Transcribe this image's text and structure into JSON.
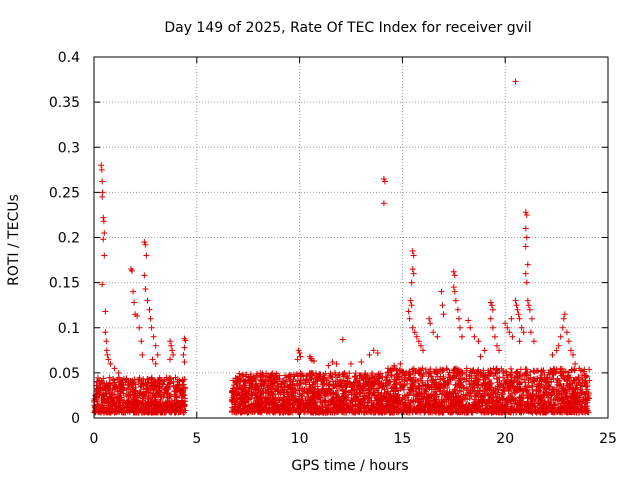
{
  "chart_data": {
    "type": "scatter",
    "title": "Day 149 of 2025, Rate Of TEC Index for receiver gvil",
    "xlabel": "GPS time / hours",
    "ylabel": "ROTI / TECUs",
    "xlim": [
      0,
      25
    ],
    "ylim": [
      0,
      0.4
    ],
    "xticks": [
      0,
      5,
      10,
      15,
      20,
      25
    ],
    "xtick_labels": [
      "0",
      "5",
      "10",
      "15",
      "20",
      "25"
    ],
    "yticks": [
      0,
      0.05,
      0.1,
      0.15,
      0.2,
      0.25,
      0.3,
      0.35,
      0.4
    ],
    "ytick_labels": [
      "0",
      "0.05",
      "0.1",
      "0.15",
      "0.2",
      "0.25",
      "0.3",
      "0.35",
      "0.4"
    ],
    "grid": true,
    "marker": "+",
    "series": [
      {
        "name": "ROTI",
        "color": "#e00000",
        "points": [
          [
            0.35,
            0.28
          ],
          [
            0.38,
            0.275
          ],
          [
            0.4,
            0.262
          ],
          [
            0.42,
            0.25
          ],
          [
            0.4,
            0.245
          ],
          [
            0.45,
            0.222
          ],
          [
            0.48,
            0.218
          ],
          [
            0.5,
            0.205
          ],
          [
            0.45,
            0.198
          ],
          [
            0.5,
            0.18
          ],
          [
            0.4,
            0.148
          ],
          [
            0.55,
            0.118
          ],
          [
            0.55,
            0.095
          ],
          [
            0.6,
            0.085
          ],
          [
            0.62,
            0.075
          ],
          [
            0.65,
            0.07
          ],
          [
            0.7,
            0.065
          ],
          [
            0.8,
            0.06
          ],
          [
            1.0,
            0.055
          ],
          [
            1.2,
            0.05
          ],
          [
            1.8,
            0.165
          ],
          [
            1.85,
            0.163
          ],
          [
            1.9,
            0.14
          ],
          [
            1.95,
            0.128
          ],
          [
            2.0,
            0.115
          ],
          [
            2.1,
            0.113
          ],
          [
            2.2,
            0.1
          ],
          [
            2.3,
            0.085
          ],
          [
            2.35,
            0.07
          ],
          [
            2.45,
            0.195
          ],
          [
            2.5,
            0.192
          ],
          [
            2.55,
            0.18
          ],
          [
            2.45,
            0.158
          ],
          [
            2.5,
            0.143
          ],
          [
            2.6,
            0.13
          ],
          [
            2.7,
            0.12
          ],
          [
            2.75,
            0.11
          ],
          [
            2.8,
            0.1
          ],
          [
            2.9,
            0.09
          ],
          [
            3.0,
            0.08
          ],
          [
            3.1,
            0.07
          ],
          [
            2.85,
            0.065
          ],
          [
            3.0,
            0.06
          ],
          [
            3.7,
            0.085
          ],
          [
            3.75,
            0.08
          ],
          [
            3.8,
            0.075
          ],
          [
            3.85,
            0.07
          ],
          [
            3.7,
            0.065
          ],
          [
            4.4,
            0.088
          ],
          [
            4.45,
            0.086
          ],
          [
            4.4,
            0.078
          ],
          [
            4.35,
            0.07
          ],
          [
            4.4,
            0.062
          ],
          [
            9.95,
            0.075
          ],
          [
            10.0,
            0.072
          ],
          [
            10.05,
            0.068
          ],
          [
            9.9,
            0.065
          ],
          [
            10.5,
            0.068
          ],
          [
            10.55,
            0.066
          ],
          [
            10.6,
            0.064
          ],
          [
            10.7,
            0.063
          ],
          [
            11.4,
            0.058
          ],
          [
            11.6,
            0.062
          ],
          [
            11.8,
            0.06
          ],
          [
            12.1,
            0.087
          ],
          [
            12.5,
            0.06
          ],
          [
            13.0,
            0.062
          ],
          [
            13.4,
            0.07
          ],
          [
            13.6,
            0.075
          ],
          [
            13.8,
            0.072
          ],
          [
            14.1,
            0.265
          ],
          [
            14.15,
            0.262
          ],
          [
            14.1,
            0.238
          ],
          [
            14.3,
            0.055
          ],
          [
            14.6,
            0.058
          ],
          [
            14.9,
            0.06
          ],
          [
            15.5,
            0.185
          ],
          [
            15.55,
            0.18
          ],
          [
            15.5,
            0.165
          ],
          [
            15.55,
            0.16
          ],
          [
            15.45,
            0.15
          ],
          [
            15.4,
            0.13
          ],
          [
            15.45,
            0.125
          ],
          [
            15.3,
            0.118
          ],
          [
            15.35,
            0.11
          ],
          [
            15.5,
            0.1
          ],
          [
            15.6,
            0.095
          ],
          [
            15.7,
            0.09
          ],
          [
            15.8,
            0.085
          ],
          [
            15.9,
            0.08
          ],
          [
            16.0,
            0.075
          ],
          [
            16.3,
            0.11
          ],
          [
            16.35,
            0.105
          ],
          [
            16.5,
            0.095
          ],
          [
            16.7,
            0.09
          ],
          [
            16.9,
            0.14
          ],
          [
            16.95,
            0.125
          ],
          [
            17.0,
            0.115
          ],
          [
            17.5,
            0.162
          ],
          [
            17.55,
            0.158
          ],
          [
            17.5,
            0.145
          ],
          [
            17.55,
            0.14
          ],
          [
            17.6,
            0.13
          ],
          [
            17.7,
            0.12
          ],
          [
            17.75,
            0.11
          ],
          [
            17.8,
            0.1
          ],
          [
            17.9,
            0.09
          ],
          [
            18.2,
            0.108
          ],
          [
            18.3,
            0.1
          ],
          [
            18.5,
            0.09
          ],
          [
            18.7,
            0.085
          ],
          [
            18.8,
            0.068
          ],
          [
            19.0,
            0.075
          ],
          [
            19.3,
            0.128
          ],
          [
            19.35,
            0.125
          ],
          [
            19.4,
            0.12
          ],
          [
            19.3,
            0.11
          ],
          [
            19.4,
            0.1
          ],
          [
            19.5,
            0.09
          ],
          [
            19.6,
            0.08
          ],
          [
            19.7,
            0.075
          ],
          [
            20.0,
            0.105
          ],
          [
            20.1,
            0.1
          ],
          [
            20.2,
            0.095
          ],
          [
            20.3,
            0.11
          ],
          [
            20.35,
            0.09
          ],
          [
            20.5,
            0.373
          ],
          [
            20.5,
            0.13
          ],
          [
            20.55,
            0.125
          ],
          [
            20.6,
            0.12
          ],
          [
            20.65,
            0.115
          ],
          [
            20.7,
            0.11
          ],
          [
            20.8,
            0.1
          ],
          [
            20.9,
            0.095
          ],
          [
            20.7,
            0.085
          ],
          [
            21.0,
            0.228
          ],
          [
            21.05,
            0.225
          ],
          [
            21.0,
            0.21
          ],
          [
            21.05,
            0.2
          ],
          [
            21.0,
            0.19
          ],
          [
            21.1,
            0.17
          ],
          [
            21.0,
            0.16
          ],
          [
            21.05,
            0.15
          ],
          [
            21.1,
            0.13
          ],
          [
            21.15,
            0.125
          ],
          [
            21.2,
            0.12
          ],
          [
            21.3,
            0.11
          ],
          [
            21.25,
            0.095
          ],
          [
            21.4,
            0.085
          ],
          [
            22.3,
            0.07
          ],
          [
            22.5,
            0.075
          ],
          [
            22.6,
            0.08
          ],
          [
            22.7,
            0.09
          ],
          [
            22.8,
            0.1
          ],
          [
            22.85,
            0.11
          ],
          [
            22.9,
            0.115
          ],
          [
            23.0,
            0.095
          ],
          [
            23.1,
            0.085
          ],
          [
            23.2,
            0.075
          ],
          [
            23.3,
            0.07
          ],
          [
            23.4,
            0.06
          ],
          [
            23.6,
            0.055
          ],
          [
            23.9,
            0.045
          ]
        ]
      }
    ],
    "dense_bands": [
      {
        "x_start": 0.0,
        "x_end": 4.45,
        "y_min": 0.0,
        "y_max": 0.045
      },
      {
        "x_start": 6.7,
        "x_end": 14.2,
        "y_min": 0.0,
        "y_max": 0.05
      },
      {
        "x_start": 14.2,
        "x_end": 24.1,
        "y_min": 0.0,
        "y_max": 0.055
      }
    ]
  }
}
